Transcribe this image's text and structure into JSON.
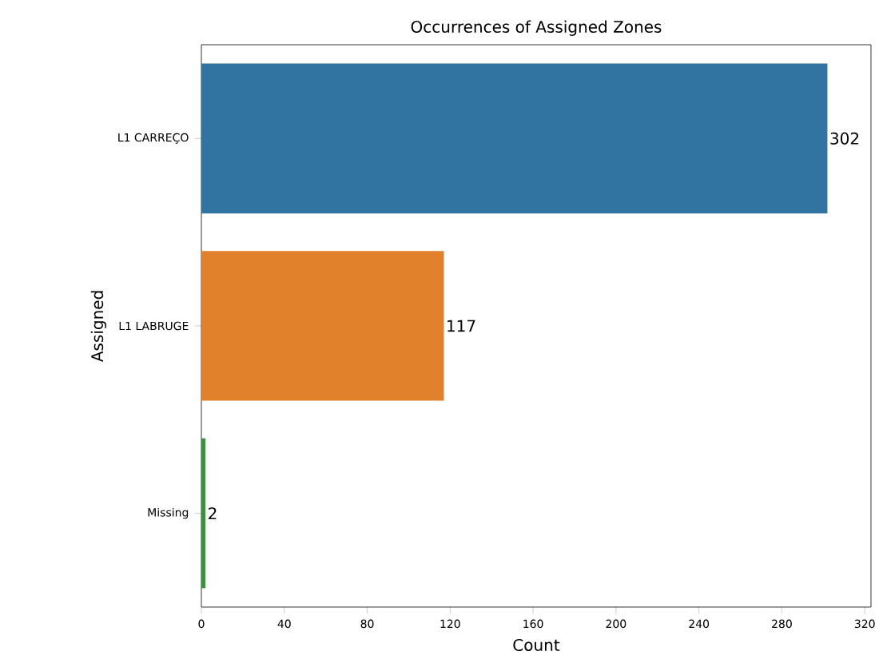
{
  "chart_data": {
    "type": "bar",
    "orientation": "horizontal",
    "title": "Occurrences of Assigned Zones",
    "xlabel": "Count",
    "ylabel": "Assigned",
    "categories": [
      "L1 CARREÇO",
      "L1 LABRUGE",
      "Missing"
    ],
    "values": [
      302,
      117,
      2
    ],
    "colors": [
      "#3274a1",
      "#e1812c",
      "#3a923a"
    ],
    "xlim": [
      0,
      323
    ],
    "xticks": [
      0,
      40,
      80,
      120,
      160,
      200,
      240,
      280,
      320
    ],
    "data_labels": true,
    "grid": false
  }
}
